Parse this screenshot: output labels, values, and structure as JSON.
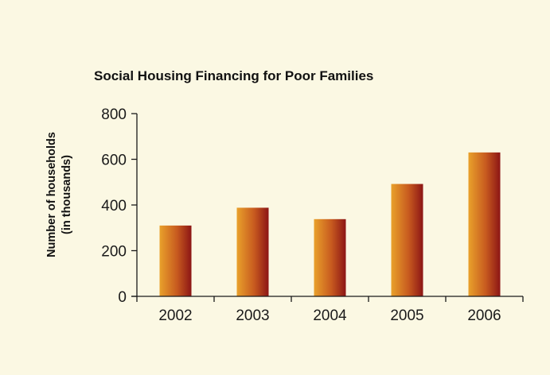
{
  "colors": {
    "background": "#fbf8e3",
    "bar_left": "#e9a12b",
    "bar_mid": "#c75a1f",
    "bar_right": "#8c1515",
    "axis": "#1a1a1a",
    "text": "#111111"
  },
  "chart_data": {
    "type": "bar",
    "title": "Social Housing Financing for Poor Families",
    "ylabel_line1": "Number of households",
    "ylabel_line2": "(in thousands)",
    "xlabel": "",
    "categories": [
      "2002",
      "2003",
      "2004",
      "2005",
      "2006"
    ],
    "values": [
      310,
      388,
      338,
      492,
      630
    ],
    "ylim": [
      0,
      800
    ],
    "yticks": [
      0,
      200,
      400,
      600,
      800
    ],
    "ytick_labels": [
      "0",
      "200",
      "400",
      "600",
      "800"
    ],
    "grid": false,
    "legend": "none"
  }
}
